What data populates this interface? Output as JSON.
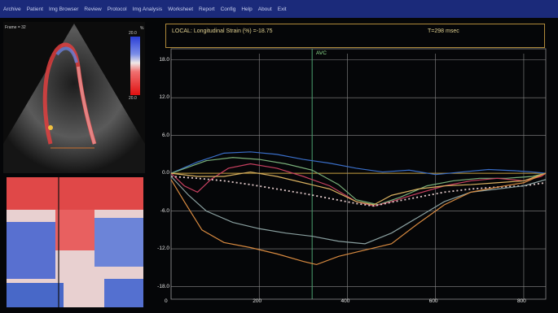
{
  "menubar": {
    "items": [
      "Archive",
      "Patient",
      "Img Browser",
      "Review",
      "Protocol",
      "Img Analysis",
      "Worksheet",
      "Report",
      "Config",
      "Help",
      "About",
      "Exit"
    ]
  },
  "echo": {
    "frame_label": "Frame = 32",
    "colorbar_top": "20.0",
    "colorbar_bottom": "20.0",
    "colorbar_unit": "%"
  },
  "plot": {
    "title": "LOCAL:  Longitudinal Strain (%) =-18.75",
    "time": "T=298 msec",
    "marker_label": "AVC",
    "colors": {
      "frame": "#b08a3a",
      "grid": "#8a8a8a",
      "baseline": "#c8a040",
      "avc": "#4aa070"
    }
  },
  "chart_data": {
    "type": "line",
    "ylabel": "Longitudinal Strain (%)",
    "ylim": [
      -20,
      19
    ],
    "xlim": [
      0,
      850
    ],
    "y_ticks": [
      "18.0",
      "12.0",
      "6.0",
      "0.0",
      "-6.0",
      "-12.0",
      "-18.0"
    ],
    "x_ticks": [
      "0",
      "200",
      "400",
      "600",
      "800"
    ],
    "avc_x": 320,
    "grid": true,
    "series": [
      {
        "color": "#3a6ec8",
        "x": [
          0,
          60,
          120,
          180,
          240,
          300,
          360,
          420,
          480,
          540,
          600,
          660,
          720,
          780,
          820,
          850
        ],
        "y": [
          0,
          1.8,
          3.2,
          3.4,
          3.0,
          2.2,
          1.6,
          0.8,
          0.2,
          0.5,
          -0.2,
          0.2,
          0.6,
          0.4,
          0.2,
          0
        ]
      },
      {
        "color": "#7ab07a",
        "x": [
          0,
          40,
          80,
          140,
          200,
          260,
          320,
          380,
          420,
          470,
          520,
          580,
          640,
          700,
          760,
          820,
          850
        ],
        "y": [
          0,
          1.0,
          2.0,
          2.5,
          2.2,
          1.5,
          0.5,
          -1.8,
          -4.2,
          -5.0,
          -3.8,
          -2.0,
          -1.2,
          -0.8,
          -0.8,
          -0.5,
          0
        ]
      },
      {
        "color": "#c84060",
        "x": [
          0,
          30,
          60,
          90,
          130,
          180,
          240,
          300,
          360,
          420,
          460,
          500,
          560,
          620,
          680,
          740,
          800,
          840,
          850
        ],
        "y": [
          0,
          -2.0,
          -3.0,
          -1.0,
          0.8,
          1.5,
          0.8,
          -0.5,
          -2.0,
          -4.5,
          -5.2,
          -4.5,
          -3.2,
          -2.0,
          -1.2,
          -0.8,
          -1.2,
          -0.5,
          0
        ]
      },
      {
        "color": "#d8b060",
        "x": [
          0,
          60,
          120,
          180,
          240,
          300,
          360,
          420,
          460,
          500,
          560,
          620,
          680,
          740,
          800,
          850
        ],
        "y": [
          0,
          -0.5,
          -0.5,
          0.2,
          -0.5,
          -1.5,
          -2.5,
          -4.5,
          -5.0,
          -3.5,
          -2.5,
          -2.0,
          -1.8,
          -1.5,
          -1.2,
          0
        ]
      },
      {
        "color": "#e0c8c8",
        "dashed": true,
        "x": [
          0,
          60,
          120,
          180,
          240,
          300,
          360,
          420,
          460,
          500,
          560,
          620,
          680,
          740,
          800,
          850
        ],
        "y": [
          -0.5,
          -0.8,
          -1.2,
          -1.8,
          -2.5,
          -3.2,
          -4.0,
          -4.8,
          -5.2,
          -4.6,
          -3.8,
          -3.0,
          -2.5,
          -2.2,
          -2.0,
          -1.5
        ]
      },
      {
        "color": "#8aa0a0",
        "x": [
          0,
          40,
          80,
          140,
          200,
          260,
          320,
          380,
          440,
          500,
          560,
          620,
          680,
          740,
          800,
          850
        ],
        "y": [
          -0.5,
          -3.5,
          -6.0,
          -7.8,
          -8.8,
          -9.5,
          -10.0,
          -10.8,
          -11.2,
          -9.5,
          -7.0,
          -4.5,
          -3.0,
          -2.5,
          -2.0,
          -1.0
        ]
      },
      {
        "color": "#d88a40",
        "x": [
          0,
          30,
          70,
          120,
          180,
          240,
          300,
          330,
          380,
          440,
          500,
          560,
          620,
          680,
          740,
          800,
          850
        ],
        "y": [
          -1.0,
          -4.5,
          -9.0,
          -11.0,
          -11.8,
          -12.8,
          -14.0,
          -14.5,
          -13.2,
          -12.2,
          -11.2,
          -8.0,
          -5.0,
          -3.0,
          -2.2,
          -1.5,
          0
        ]
      }
    ]
  }
}
